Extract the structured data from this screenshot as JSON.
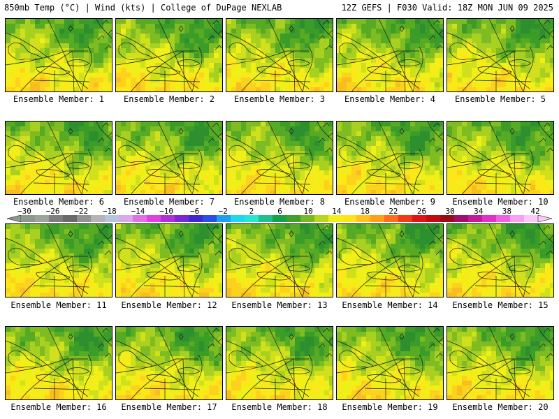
{
  "header": {
    "left_title": "850mb Temp (°C) | Wind (kts) | College of DuPage NEXLAB",
    "right_title": "12Z GEFS | F030 Valid: 18Z MON JUN 09 2025"
  },
  "panels": [
    {
      "label": "Ensemble Member: 1"
    },
    {
      "label": "Ensemble Member: 2"
    },
    {
      "label": "Ensemble Member: 3"
    },
    {
      "label": "Ensemble Member: 4"
    },
    {
      "label": "Ensemble Member: 5"
    },
    {
      "label": "Ensemble Member: 6"
    },
    {
      "label": "Ensemble Member: 7"
    },
    {
      "label": "Ensemble Member: 8"
    },
    {
      "label": "Ensemble Member: 9"
    },
    {
      "label": "Ensemble Member: 10"
    },
    {
      "label": "Ensemble Member: 11"
    },
    {
      "label": "Ensemble Member: 12"
    },
    {
      "label": "Ensemble Member: 13"
    },
    {
      "label": "Ensemble Member: 14"
    },
    {
      "label": "Ensemble Member: 15"
    },
    {
      "label": "Ensemble Member: 16"
    },
    {
      "label": "Ensemble Member: 17"
    },
    {
      "label": "Ensemble Member: 18"
    },
    {
      "label": "Ensemble Member: 19"
    },
    {
      "label": "Ensemble Member: 20"
    }
  ],
  "colorbar": {
    "ticks": [
      "−30",
      "−26",
      "−22",
      "−18",
      "−14",
      "−10",
      "−6",
      "−2",
      "2",
      "6",
      "10",
      "14",
      "18",
      "22",
      "26",
      "30",
      "34",
      "38",
      "42"
    ],
    "colors": [
      "#8c9a8c",
      "#9aa69a",
      "#7e7e7e",
      "#6a6a6a",
      "#929292",
      "#b4b4b4",
      "#b6c4dc",
      "#d8a8e8",
      "#e070e8",
      "#e040e0",
      "#b030d8",
      "#7a28d0",
      "#3a2ad0",
      "#2a4ee8",
      "#1ea0f0",
      "#22d6f0",
      "#28e6d0",
      "#20c08c",
      "#18a048",
      "#3fa02a",
      "#78b824",
      "#b6d81c",
      "#f0f01a",
      "#ffe21a",
      "#ffc21a",
      "#ff9e1a",
      "#ff6c1a",
      "#f23a16",
      "#e01414",
      "#c00c0c",
      "#9c0a14",
      "#a0106a",
      "#c8189c",
      "#e030c8",
      "#f060e0",
      "#f8a0f0",
      "#fcc8f8"
    ]
  }
}
